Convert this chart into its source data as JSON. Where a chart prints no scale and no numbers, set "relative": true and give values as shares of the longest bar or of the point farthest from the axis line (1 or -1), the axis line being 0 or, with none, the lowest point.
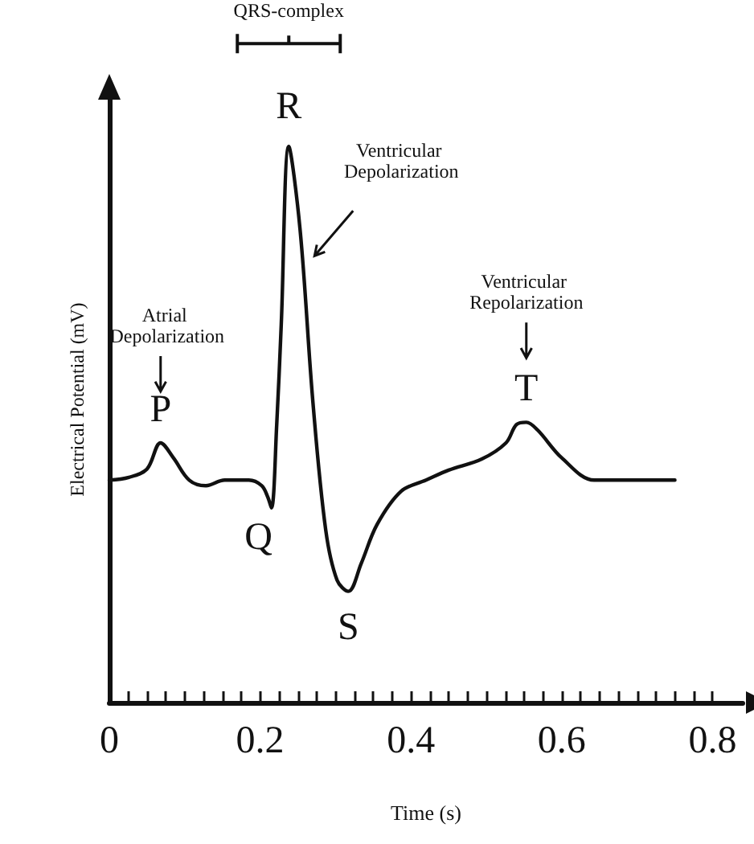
{
  "chart_data": {
    "type": "line",
    "relative": true,
    "xlabel": "Time (s)",
    "ylabel": "Electrical Potential (mV)",
    "x": [
      0,
      0.026,
      0.05,
      0.068,
      0.085,
      0.106,
      0.128,
      0.153,
      0.185,
      0.202,
      0.21,
      0.215,
      0.222,
      0.228,
      0.238,
      0.253,
      0.27,
      0.287,
      0.302,
      0.317,
      0.334,
      0.355,
      0.387,
      0.42,
      0.45,
      0.494,
      0.526,
      0.54,
      0.553,
      0.568,
      0.6,
      0.643,
      0.685,
      0.75
    ],
    "series": [
      {
        "color": "#111111",
        "values": [
          0.4,
          0.405,
          0.42,
          0.467,
          0.44,
          0.4,
          0.39,
          0.4,
          0.4,
          0.39,
          0.37,
          0.35,
          0.5,
          0.68,
          1.0,
          0.85,
          0.54,
          0.31,
          0.22,
          0.2,
          0.25,
          0.32,
          0.38,
          0.4,
          0.418,
          0.438,
          0.467,
          0.5,
          0.504,
          0.49,
          0.44,
          0.4,
          0.4,
          0.4
        ]
      }
    ],
    "xlim": [
      0,
      0.84
    ],
    "xticks": [
      0,
      {
        "value": 0.025,
        "label": null
      },
      {
        "value": 0.05,
        "label": null
      },
      {
        "value": 0.075,
        "label": null
      },
      {
        "value": 0.1,
        "label": null
      },
      {
        "value": 0.125,
        "label": null
      },
      {
        "value": 0.15,
        "label": null
      },
      {
        "value": 0.175,
        "label": null
      },
      0.2,
      {
        "value": 0.225,
        "label": null
      },
      {
        "value": 0.25,
        "label": null
      },
      {
        "value": 0.275,
        "label": null
      },
      {
        "value": 0.3,
        "label": null
      },
      {
        "value": 0.325,
        "label": null
      },
      {
        "value": 0.35,
        "label": null
      },
      {
        "value": 0.375,
        "label": null
      },
      0.4,
      {
        "value": 0.425,
        "label": null
      },
      {
        "value": 0.45,
        "label": null
      },
      {
        "value": 0.475,
        "label": null
      },
      {
        "value": 0.5,
        "label": null
      },
      {
        "value": 0.525,
        "label": null
      },
      {
        "value": 0.55,
        "label": null
      },
      {
        "value": 0.575,
        "label": null
      },
      0.6,
      {
        "value": 0.625,
        "label": null
      },
      {
        "value": 0.65,
        "label": null
      },
      {
        "value": 0.675,
        "label": null
      },
      {
        "value": 0.7,
        "label": null
      },
      {
        "value": 0.725,
        "label": null
      },
      {
        "value": 0.75,
        "label": null
      },
      {
        "value": 0.775,
        "label": null
      },
      0.8
    ],
    "annotations": [
      "QRS-complex",
      {
        "text": "R",
        "x": 0.238,
        "y": 1.0
      },
      "Ventricular Depolarization",
      "Atrial Depolarization",
      {
        "text": "P",
        "x": 0.068,
        "y": 0.467
      },
      "Ventricular Repolarization",
      {
        "text": "T",
        "x": 0.553,
        "y": 0.504
      },
      {
        "text": "Q",
        "x": 0.215,
        "y": 0.35
      },
      {
        "text": "S",
        "x": 0.317,
        "y": 0.2
      }
    ],
    "grid": false,
    "marker": "none",
    "line_style": "solid"
  }
}
